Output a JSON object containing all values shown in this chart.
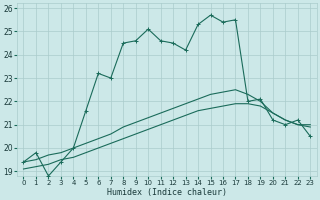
{
  "xlabel": "Humidex (Indice chaleur)",
  "background_color": "#cce8e8",
  "grid_color": "#aacccc",
  "line_color": "#1a6b5a",
  "xlim": [
    -0.5,
    23.5
  ],
  "ylim": [
    18.8,
    26.2
  ],
  "yticks": [
    19,
    20,
    21,
    22,
    23,
    24,
    25,
    26
  ],
  "xticks": [
    0,
    1,
    2,
    3,
    4,
    5,
    6,
    7,
    8,
    9,
    10,
    11,
    12,
    13,
    14,
    15,
    16,
    17,
    18,
    19,
    20,
    21,
    22,
    23
  ],
  "series1_x": [
    0,
    1,
    2,
    3,
    4,
    5,
    6,
    7,
    8,
    9,
    10,
    11,
    12,
    13,
    14,
    15,
    16,
    17,
    18,
    19,
    20,
    21,
    22,
    23
  ],
  "series1_y": [
    19.4,
    19.8,
    18.8,
    19.4,
    20.0,
    21.6,
    23.2,
    23.0,
    24.5,
    24.6,
    25.1,
    24.6,
    24.5,
    24.2,
    25.3,
    25.7,
    25.4,
    25.5,
    22.0,
    22.1,
    21.2,
    21.0,
    21.2,
    20.5
  ],
  "series2_x": [
    0,
    1,
    2,
    3,
    4,
    5,
    6,
    7,
    8,
    9,
    10,
    11,
    12,
    13,
    14,
    15,
    16,
    17,
    18,
    19,
    20,
    21,
    22,
    23
  ],
  "series2_y": [
    19.4,
    19.5,
    19.7,
    19.8,
    20.0,
    20.2,
    20.4,
    20.6,
    20.9,
    21.1,
    21.3,
    21.5,
    21.7,
    21.9,
    22.1,
    22.3,
    22.4,
    22.5,
    22.3,
    22.0,
    21.5,
    21.2,
    21.0,
    21.0
  ],
  "series3_x": [
    0,
    1,
    2,
    3,
    4,
    5,
    6,
    7,
    8,
    9,
    10,
    11,
    12,
    13,
    14,
    15,
    16,
    17,
    18,
    19,
    20,
    21,
    22,
    23
  ],
  "series3_y": [
    19.1,
    19.2,
    19.3,
    19.5,
    19.6,
    19.8,
    20.0,
    20.2,
    20.4,
    20.6,
    20.8,
    21.0,
    21.2,
    21.4,
    21.6,
    21.7,
    21.8,
    21.9,
    21.9,
    21.8,
    21.5,
    21.2,
    21.0,
    20.9
  ]
}
